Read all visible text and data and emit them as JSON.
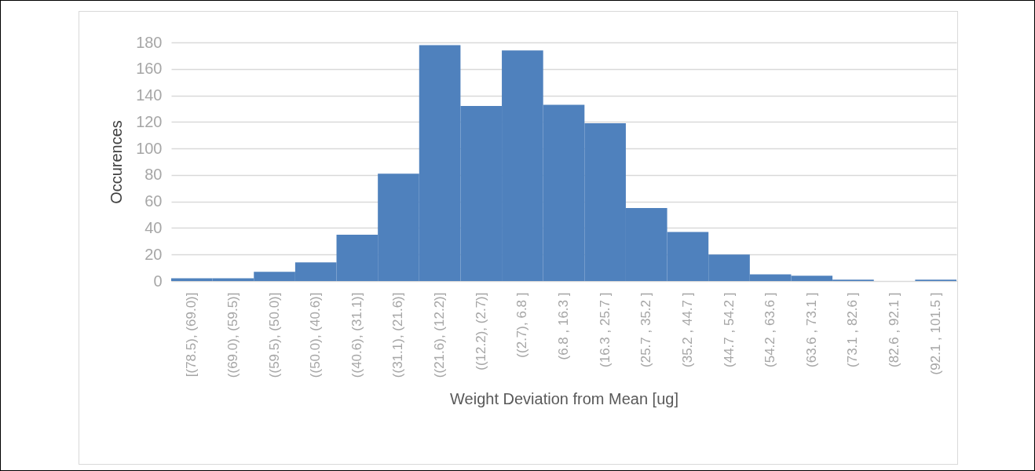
{
  "chart_data": {
    "type": "bar",
    "xlabel": "Weight Deviation from Mean [ug]",
    "ylabel": "Occurences",
    "categories": [
      "[(78.5), (69.0)]",
      "((69.0), (59.5)]",
      "((59.5), (50.0)]",
      "((50.0), (40.6)]",
      "((40.6), (31.1)]",
      "((31.1), (21.6)]",
      "((21.6), (12.2)]",
      "((12.2), (2.7)]",
      "((2.7), 6.8 ]",
      "(6.8 , 16.3 ]",
      "(16.3 , 25.7 ]",
      "(25.7 , 35.2 ]",
      "(35.2 , 44.7 ]",
      "(44.7 , 54.2 ]",
      "(54.2 , 63.6 ]",
      "(63.6 , 73.1 ]",
      "(73.1 , 82.6 ]",
      "(82.6 , 92.1 ]",
      "(92.1 , 101.5 ]"
    ],
    "values": [
      2,
      2,
      7,
      14,
      35,
      81,
      178,
      132,
      174,
      133,
      119,
      55,
      37,
      20,
      5,
      4,
      1,
      0,
      1
    ],
    "color": "#4f81bd",
    "ylim": [
      0,
      180
    ],
    "yticks": [
      0,
      20,
      40,
      60,
      80,
      100,
      120,
      140,
      160,
      180
    ],
    "grid": "y"
  }
}
